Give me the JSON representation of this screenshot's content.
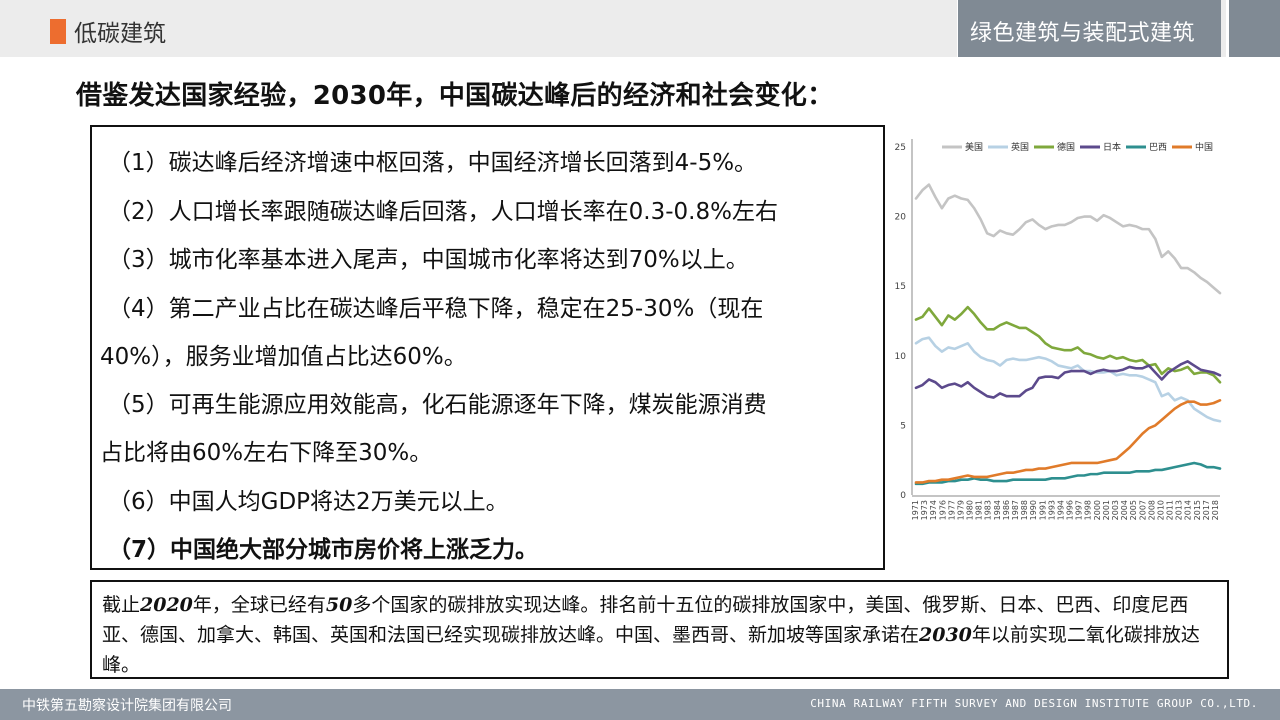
{
  "header": {
    "section_title": "低碳建筑",
    "tab_label": "绿色建筑与装配式建筑"
  },
  "page_title": "借鉴发达国家经验，2030年，中国碳达峰后的经济和社会变化：",
  "items": [
    {
      "text": "（1）碳达峰后经济增速中枢回落，中国经济增长回落到4-5%。",
      "bold": false
    },
    {
      "text": "（2）人口增长率跟随碳达峰后回落，人口增长率在0.3-0.8%左右",
      "bold": false
    },
    {
      "text": "（3）城市化率基本进入尾声，中国城市化率将达到70%以上。",
      "bold": false
    },
    {
      "text": "（4）第二产业占比在碳达峰后平稳下降，稳定在25-30%（现在",
      "bold": false
    },
    {
      "text": "40%），服务业增加值占比达60%。",
      "bold": false
    },
    {
      "text": "（5）可再生能源应用效能高，化石能源逐年下降，煤炭能源消费",
      "bold": false
    },
    {
      "text": "占比将由60%左右下降至30%。",
      "bold": false
    },
    {
      "text": "（6）中国人均GDP将达2万美元以上。",
      "bold": false
    },
    {
      "text": "（7）中国绝大部分城市房价将上涨乏力。",
      "bold": true
    }
  ],
  "note": {
    "p1": "截止",
    "y1": "2020",
    "p2": "年，全球已经有",
    "n1": "50",
    "p3": "多个国家的碳排放实现达峰。排名前十五位的碳排放国家中，美国、俄罗斯、日本、巴西、印度尼西亚、德国、加拿大、韩国、英国和法国已经实现碳排放达峰。中国、墨西哥、新加坡等国家承诺在",
    "y2": "2030",
    "p4": "年以前实现二氧化碳排放达峰。"
  },
  "footer": {
    "left": "中铁第五勘察设计院集团有限公司",
    "right": "CHINA RAILWAY FIFTH SURVEY AND DESIGN INSTITUTE GROUP CO.,LTD."
  },
  "chart_data": {
    "type": "line",
    "ylim": [
      0,
      25
    ],
    "yticks": [
      0,
      5,
      10,
      15,
      20,
      25
    ],
    "x": [
      1971,
      1972,
      1973,
      1974,
      1975,
      1976,
      1977,
      1978,
      1979,
      1980,
      1981,
      1982,
      1983,
      1984,
      1985,
      1986,
      1987,
      1988,
      1989,
      1990,
      1991,
      1992,
      1993,
      1994,
      1995,
      1996,
      1997,
      1998,
      1999,
      2000,
      2001,
      2002,
      2003,
      2004,
      2005,
      2006,
      2007,
      2008,
      2009,
      2010,
      2011,
      2012,
      2013,
      2014,
      2015,
      2016,
      2017,
      2018
    ],
    "xtick_labels": [
      "1971",
      "1973",
      "1974",
      "1976",
      "1977",
      "1979",
      "1980",
      "1981",
      "1983",
      "1984",
      "1986",
      "1987",
      "1988",
      "1990",
      "1991",
      "1993",
      "1994",
      "1996",
      "1997",
      "1998",
      "2000",
      "2001",
      "2003",
      "2004",
      "2005",
      "2007",
      "2008",
      "2010",
      "2011",
      "2013",
      "2014",
      "2015",
      "2017",
      "2018"
    ],
    "series": [
      {
        "name": "美国",
        "color": "#c4c4c4",
        "values": [
          21.3,
          21.9,
          22.3,
          21.4,
          20.6,
          21.3,
          21.5,
          21.3,
          21.2,
          20.6,
          19.8,
          18.8,
          18.6,
          19.0,
          18.8,
          18.7,
          19.1,
          19.6,
          19.8,
          19.4,
          19.1,
          19.3,
          19.4,
          19.4,
          19.6,
          19.9,
          20.0,
          20.0,
          19.7,
          20.1,
          19.9,
          19.6,
          19.3,
          19.4,
          19.3,
          19.1,
          19.1,
          18.4,
          17.1,
          17.5,
          17.0,
          16.3,
          16.3,
          16.0,
          15.6,
          15.3,
          14.9,
          14.5
        ]
      },
      {
        "name": "英国",
        "color": "#b7d1e4",
        "values": [
          10.9,
          11.2,
          11.3,
          10.7,
          10.3,
          10.6,
          10.5,
          10.7,
          10.9,
          10.3,
          9.9,
          9.7,
          9.6,
          9.3,
          9.7,
          9.8,
          9.7,
          9.7,
          9.8,
          9.9,
          9.8,
          9.6,
          9.3,
          9.2,
          9.1,
          9.3,
          8.9,
          8.9,
          8.8,
          8.8,
          8.9,
          8.6,
          8.7,
          8.6,
          8.6,
          8.5,
          8.3,
          8.1,
          7.1,
          7.3,
          6.8,
          7.0,
          6.8,
          6.2,
          5.9,
          5.6,
          5.4,
          5.3
        ]
      },
      {
        "name": "德国",
        "color": "#7fa83c",
        "values": [
          12.6,
          12.8,
          13.4,
          12.8,
          12.2,
          12.9,
          12.6,
          13.0,
          13.5,
          13.0,
          12.4,
          11.9,
          11.9,
          12.2,
          12.4,
          12.2,
          12.0,
          12.0,
          11.7,
          11.4,
          10.9,
          10.6,
          10.5,
          10.4,
          10.4,
          10.6,
          10.2,
          10.1,
          9.9,
          9.8,
          10.0,
          9.8,
          9.9,
          9.7,
          9.6,
          9.7,
          9.3,
          9.4,
          8.7,
          9.1,
          8.9,
          9.0,
          9.2,
          8.7,
          8.8,
          8.8,
          8.6,
          8.1
        ]
      },
      {
        "name": "日本",
        "color": "#5c4a8c",
        "values": [
          7.7,
          7.9,
          8.3,
          8.1,
          7.7,
          7.9,
          8.0,
          7.8,
          8.1,
          7.7,
          7.4,
          7.1,
          7.0,
          7.3,
          7.1,
          7.1,
          7.1,
          7.5,
          7.7,
          8.4,
          8.5,
          8.5,
          8.4,
          8.8,
          8.9,
          8.9,
          8.9,
          8.7,
          8.9,
          9.0,
          8.9,
          8.9,
          9.0,
          9.2,
          9.1,
          9.1,
          9.3,
          8.8,
          8.3,
          8.8,
          9.1,
          9.4,
          9.6,
          9.3,
          9.0,
          8.9,
          8.8,
          8.6
        ]
      },
      {
        "name": "巴西",
        "color": "#2e8f8f",
        "values": [
          0.8,
          0.8,
          0.9,
          0.9,
          0.9,
          1.0,
          1.0,
          1.1,
          1.1,
          1.2,
          1.1,
          1.1,
          1.0,
          1.0,
          1.0,
          1.1,
          1.1,
          1.1,
          1.1,
          1.1,
          1.1,
          1.2,
          1.2,
          1.2,
          1.3,
          1.4,
          1.4,
          1.5,
          1.5,
          1.6,
          1.6,
          1.6,
          1.6,
          1.6,
          1.7,
          1.7,
          1.7,
          1.8,
          1.8,
          1.9,
          2.0,
          2.1,
          2.2,
          2.3,
          2.2,
          2.0,
          2.0,
          1.9
        ]
      },
      {
        "name": "中国",
        "color": "#e07b2a",
        "values": [
          0.9,
          0.9,
          1.0,
          1.0,
          1.1,
          1.1,
          1.2,
          1.3,
          1.4,
          1.3,
          1.3,
          1.3,
          1.4,
          1.5,
          1.6,
          1.6,
          1.7,
          1.8,
          1.8,
          1.9,
          1.9,
          2.0,
          2.1,
          2.2,
          2.3,
          2.3,
          2.3,
          2.3,
          2.3,
          2.4,
          2.5,
          2.6,
          3.0,
          3.4,
          3.9,
          4.4,
          4.8,
          5.0,
          5.4,
          5.8,
          6.2,
          6.5,
          6.7,
          6.7,
          6.5,
          6.5,
          6.6,
          6.8
        ]
      }
    ]
  }
}
